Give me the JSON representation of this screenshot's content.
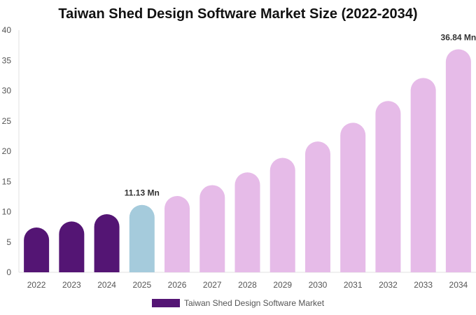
{
  "chart_data": {
    "type": "bar",
    "title": "Taiwan Shed Design Software Market Size (2022-2034)",
    "xlabel": "",
    "ylabel": "",
    "categories": [
      "2022",
      "2023",
      "2024",
      "2025",
      "2026",
      "2027",
      "2028",
      "2029",
      "2030",
      "2031",
      "2032",
      "2033",
      "2034"
    ],
    "series": [
      {
        "name": "Taiwan Shed Design Software Market",
        "values": [
          7.4,
          8.4,
          9.6,
          11.13,
          12.6,
          14.4,
          16.5,
          18.9,
          21.6,
          24.7,
          28.3,
          32.1,
          36.84
        ]
      }
    ],
    "ylim": [
      0,
      40
    ],
    "yticks": [
      0,
      5,
      10,
      15,
      20,
      25,
      30,
      35,
      40
    ],
    "grid": false,
    "legend_position": "bottom",
    "data_labels": [
      {
        "index": 3,
        "text": "11.13 Mn"
      },
      {
        "index": 12,
        "text": "36.84 Mn"
      }
    ],
    "colors": {
      "historical": "#541574",
      "current": "#a5cbdc",
      "forecast": "#e6bbe8"
    },
    "historical_count": 3,
    "current_index": 3
  }
}
